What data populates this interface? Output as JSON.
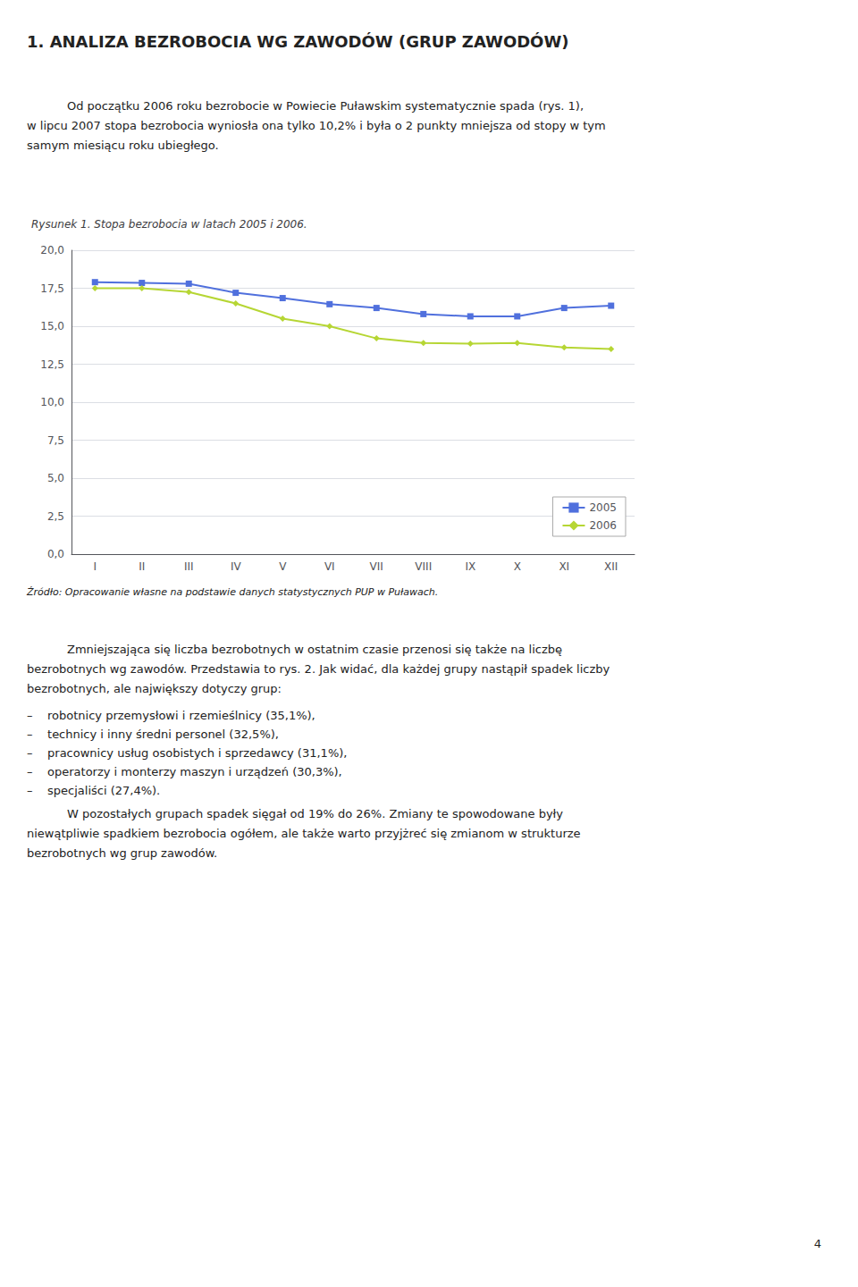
{
  "heading": "1. ANALIZA BEZROBOCIA WG ZAWODÓW (GRUP ZAWODÓW)",
  "paragraph1": [
    "Od początku 2006 roku bezrobocie w Powiecie Puławskim systematycznie spada (rys. 1),",
    "w lipcu 2007 stopa bezrobocia wyniosła ona tylko 10,2% i była o 2 punkty mniejsza od stopy w tym",
    "samym miesiącu roku ubiegłego."
  ],
  "chart_data": {
    "type": "line",
    "title": "Rysunek 1. Stopa bezrobocia w latach 2005 i 2006.",
    "source": "Źródło: Opracowanie własne na podstawie danych statystycznych PUP w Puławach.",
    "categories": [
      "I",
      "II",
      "III",
      "IV",
      "V",
      "VI",
      "VII",
      "VIII",
      "IX",
      "X",
      "XI",
      "XII"
    ],
    "series": [
      {
        "name": "2005",
        "marker": "square",
        "values": [
          17.9,
          17.85,
          17.8,
          17.2,
          16.85,
          16.45,
          16.2,
          15.8,
          15.65,
          15.65,
          16.2,
          16.35
        ]
      },
      {
        "name": "2006",
        "marker": "diamond",
        "values": [
          17.5,
          17.5,
          17.25,
          16.5,
          15.5,
          15.0,
          14.2,
          13.9,
          13.85,
          13.9,
          13.6,
          13.5
        ]
      }
    ],
    "ylim": [
      0.0,
      20.0
    ],
    "yticks": [
      {
        "value": 0.0,
        "label": "0,0"
      },
      {
        "value": 2.5,
        "label": "2,5"
      },
      {
        "value": 5.0,
        "label": "5,0"
      },
      {
        "value": 7.5,
        "label": "7,5"
      },
      {
        "value": 10.0,
        "label": "10,0"
      },
      {
        "value": 12.5,
        "label": "12,5"
      },
      {
        "value": 15.0,
        "label": "15,0"
      },
      {
        "value": 17.5,
        "label": "17,5"
      },
      {
        "value": 20.0,
        "label": "20,0"
      }
    ],
    "grid": true,
    "legend": "lower right"
  },
  "paragraph2": [
    "Zmniejszająca się liczba bezrobotnych w ostatnim czasie przenosi się także na liczbę",
    "bezrobotnych wg zawodów. Przedstawia to rys. 2. Jak widać, dla każdej grupy nastąpił spadek liczby",
    "bezrobotnych, ale największy dotyczy grup:"
  ],
  "bullets": [
    "–    robotnicy przemysłowi i rzemieślnicy (35,1%),",
    "–    technicy i inny średni personel (32,5%),",
    "–    pracownicy usług osobistych i sprzedawcy (31,1%),",
    "–    operatorzy i monterzy maszyn i urządzeń (30,3%),",
    "–    specjaliści (27,4%)."
  ],
  "paragraph3": [
    "W pozostałych grupach spadek sięgał od 19% do 26%. Zmiany te spowodowane były",
    "niewątpliwie spadkiem bezrobocia ogółem, ale także warto przyjżreć się zmianom w strukturze",
    "bezrobotnych wg grup zawodów."
  ],
  "page_number": "4"
}
